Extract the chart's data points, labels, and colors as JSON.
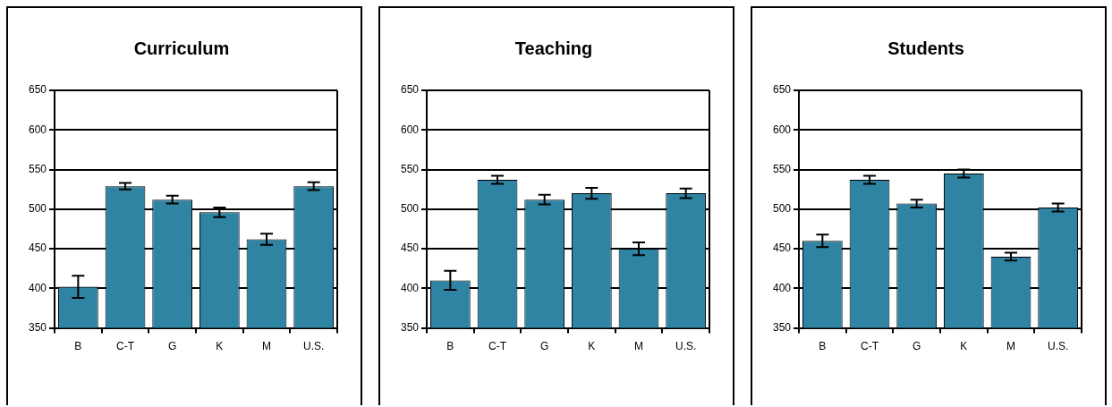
{
  "chart_data": [
    {
      "type": "bar",
      "title": "Curriculum",
      "categories": [
        "B",
        "C-T",
        "G",
        "K",
        "M",
        "U.S."
      ],
      "values": [
        402,
        529,
        512,
        496,
        462,
        529
      ],
      "errors": [
        14,
        4,
        5,
        6,
        7,
        5
      ],
      "color": "#2e84a2",
      "ylim": [
        350,
        650
      ],
      "yticks": [
        350,
        400,
        450,
        500,
        550,
        600,
        650
      ],
      "grid": "y"
    },
    {
      "type": "bar",
      "title": "Teaching",
      "categories": [
        "B",
        "C-T",
        "G",
        "K",
        "M",
        "U.S."
      ],
      "values": [
        410,
        537,
        512,
        520,
        450,
        520
      ],
      "errors": [
        12,
        5,
        6,
        7,
        8,
        6
      ],
      "color": "#2e84a2",
      "ylim": [
        350,
        650
      ],
      "yticks": [
        350,
        400,
        450,
        500,
        550,
        600,
        650
      ],
      "grid": "y"
    },
    {
      "type": "bar",
      "title": "Students",
      "categories": [
        "B",
        "C-T",
        "G",
        "K",
        "M",
        "U.S."
      ],
      "values": [
        460,
        537,
        507,
        545,
        440,
        502
      ],
      "errors": [
        8,
        5,
        5,
        5,
        5,
        5
      ],
      "color": "#2e84a2",
      "ylim": [
        350,
        650
      ],
      "yticks": [
        350,
        400,
        450,
        500,
        550,
        600,
        650
      ],
      "grid": "y"
    }
  ]
}
